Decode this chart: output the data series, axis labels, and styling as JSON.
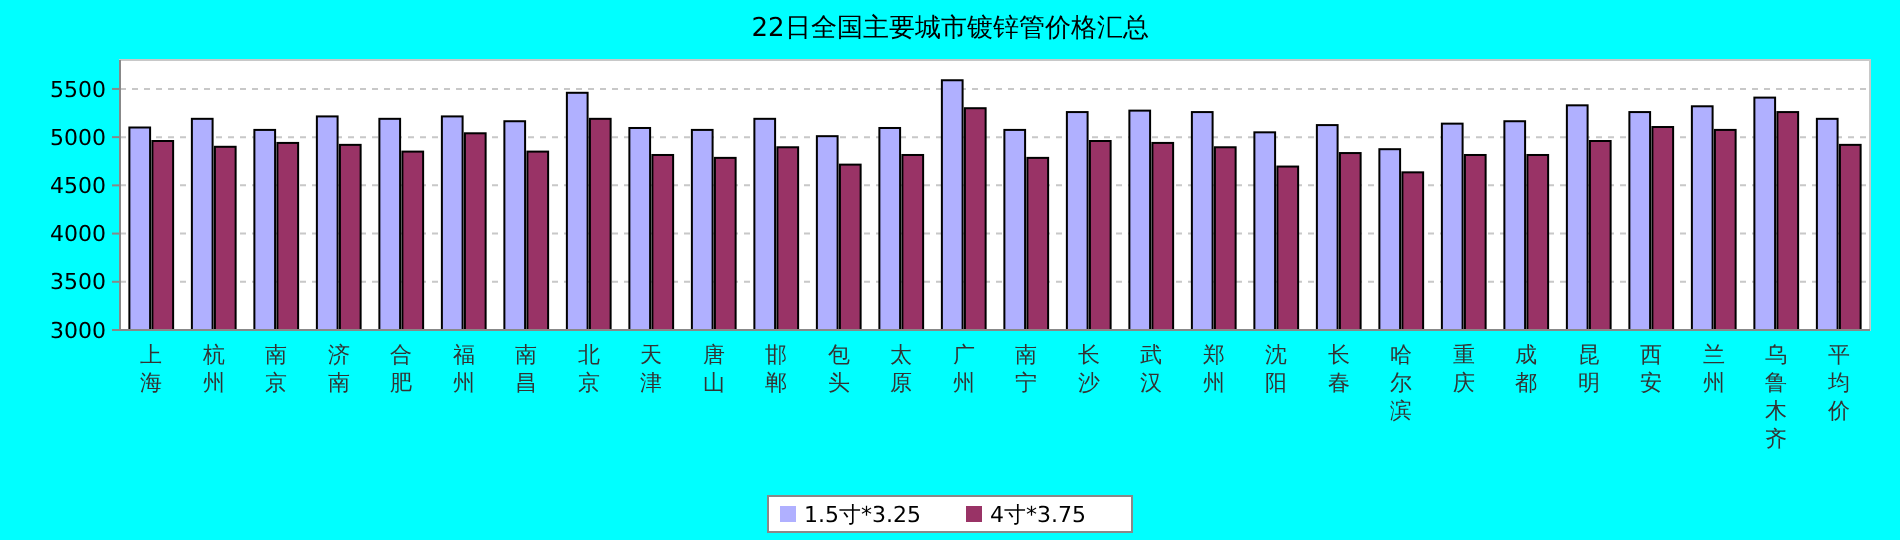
{
  "chart_data": {
    "type": "bar",
    "title": "22日全国主要城市镀锌管价格汇总",
    "categories": [
      "上海",
      "杭州",
      "南京",
      "济南",
      "合肥",
      "福州",
      "南昌",
      "北京",
      "天津",
      "唐山",
      "邯郸",
      "包头",
      "太原",
      "广州",
      "南宁",
      "长沙",
      "武汉",
      "郑州",
      "沈阳",
      "长春",
      "哈尔滨",
      "重庆",
      "成都",
      "昆明",
      "西安",
      "兰州",
      "乌鲁木齐",
      "平均价"
    ],
    "series": [
      {
        "name": "1.5寸*3.25",
        "color": "#b0b0ff",
        "values": [
          5100,
          5190,
          5075,
          5215,
          5190,
          5215,
          5165,
          5460,
          5095,
          5075,
          5190,
          5010,
          5095,
          5590,
          5075,
          5260,
          5275,
          5260,
          5050,
          5125,
          4875,
          5140,
          5165,
          5330,
          5260,
          5320,
          5410,
          5190
        ]
      },
      {
        "name": "4寸*3.75",
        "color": "#993366",
        "values": [
          4960,
          4900,
          4940,
          4920,
          4850,
          5040,
          4850,
          5190,
          4815,
          4785,
          4895,
          4715,
          4815,
          5300,
          4785,
          4960,
          4940,
          4895,
          4695,
          4835,
          4635,
          4815,
          4815,
          4960,
          5105,
          5075,
          5260,
          4920
        ]
      }
    ],
    "ylim": [
      3000,
      5800
    ],
    "yticks": [
      3000,
      3500,
      4000,
      4500,
      5000,
      5500
    ],
    "grid": "y",
    "legend": "bottom"
  }
}
